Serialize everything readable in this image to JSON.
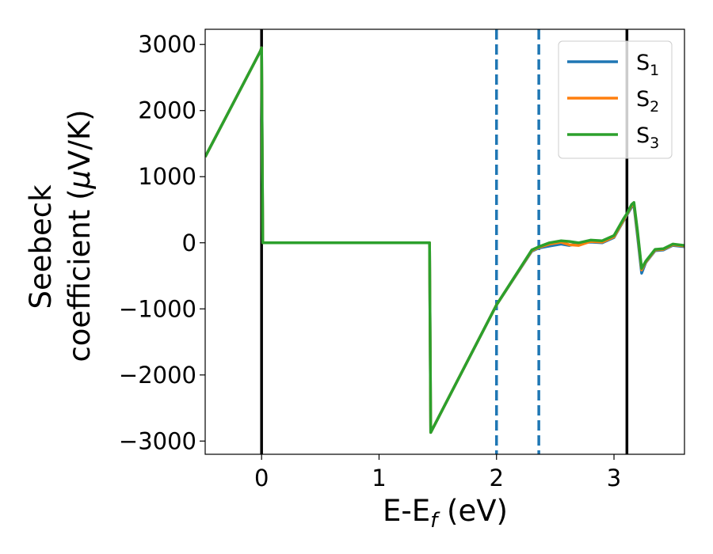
{
  "chart_data": {
    "type": "line",
    "title": "",
    "xlabel": {
      "main": "E-E",
      "sub": "f",
      "unit": " (eV)"
    },
    "ylabel": {
      "line1": "Seebeck",
      "line2": "coefficient  (",
      "mu": "μ",
      "unit": "V/K)"
    },
    "xlim": [
      -0.48,
      3.6
    ],
    "ylim": [
      -3200,
      3230
    ],
    "xticks": [
      0,
      1,
      2,
      3
    ],
    "xtick_labels": [
      "0",
      "1",
      "2",
      "3"
    ],
    "yticks": [
      -3000,
      -2000,
      -1000,
      0,
      1000,
      2000,
      3000
    ],
    "ytick_labels": [
      "−3000",
      "−2000",
      "−1000",
      "0",
      "1000",
      "2000",
      "3000"
    ],
    "grid": false,
    "legend_position": "top-right",
    "vertical_lines": [
      {
        "x": 0.0,
        "style": "solid",
        "color": "#000000"
      },
      {
        "x": 2.0,
        "style": "dashed",
        "color": "#1f77b4"
      },
      {
        "x": 2.36,
        "style": "dashed",
        "color": "#1f77b4"
      },
      {
        "x": 3.11,
        "style": "solid",
        "color": "#000000"
      }
    ],
    "series": [
      {
        "name": "S",
        "sub": "1",
        "color": "#1f77b4",
        "x": [
          -0.48,
          -0.01,
          0.0,
          0.01,
          1.43,
          1.435,
          1.44,
          2.0,
          2.3,
          2.36,
          2.45,
          2.55,
          2.62,
          2.7,
          2.8,
          2.9,
          3.0,
          3.08,
          3.11,
          3.15,
          3.17,
          3.2,
          3.235,
          3.27,
          3.35,
          3.42,
          3.5,
          3.6
        ],
        "y": [
          1300,
          2900,
          2950,
          0,
          0,
          -1500,
          -2870,
          -940,
          -130,
          -80,
          -50,
          -20,
          -40,
          -10,
          10,
          0,
          80,
          330,
          420,
          540,
          560,
          100,
          -460,
          -300,
          -120,
          -110,
          -40,
          -60
        ]
      },
      {
        "name": "S",
        "sub": "2",
        "color": "#ff7f0e",
        "x": [
          -0.48,
          -0.01,
          0.0,
          0.01,
          1.43,
          1.435,
          1.44,
          2.0,
          2.3,
          2.36,
          2.45,
          2.55,
          2.62,
          2.7,
          2.8,
          2.9,
          3.0,
          3.08,
          3.11,
          3.15,
          3.17,
          3.2,
          3.235,
          3.27,
          3.35,
          3.42,
          3.5,
          3.6
        ],
        "y": [
          1300,
          2900,
          2950,
          0,
          0,
          -1500,
          -2870,
          -940,
          -120,
          -70,
          -20,
          10,
          -30,
          -40,
          20,
          10,
          90,
          340,
          430,
          560,
          590,
          150,
          -410,
          -290,
          -110,
          -100,
          -30,
          -50
        ]
      },
      {
        "name": "S",
        "sub": "3",
        "color": "#2ca02c",
        "x": [
          -0.48,
          -0.01,
          0.0,
          0.01,
          1.43,
          1.435,
          1.44,
          2.0,
          2.3,
          2.36,
          2.45,
          2.55,
          2.62,
          2.7,
          2.8,
          2.9,
          3.0,
          3.08,
          3.11,
          3.15,
          3.17,
          3.2,
          3.235,
          3.27,
          3.35,
          3.42,
          3.5,
          3.6
        ],
        "y": [
          1300,
          2900,
          2950,
          0,
          0,
          -1500,
          -2870,
          -940,
          -110,
          -60,
          0,
          30,
          20,
          0,
          40,
          30,
          110,
          360,
          440,
          580,
          610,
          180,
          -390,
          -280,
          -100,
          -90,
          -20,
          -40
        ]
      }
    ]
  }
}
